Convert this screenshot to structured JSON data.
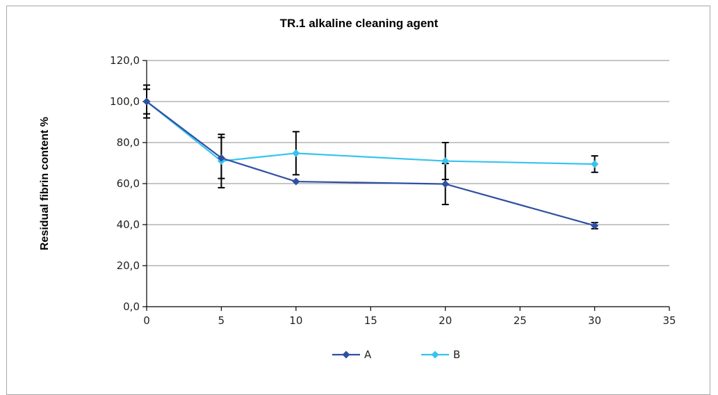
{
  "chart_data": {
    "type": "line",
    "title": "TR.1 alkaline cleaning agent",
    "xlabel": "",
    "ylabel": "Residual fibrin content %",
    "xlim": [
      0,
      35
    ],
    "ylim": [
      0,
      120
    ],
    "x_ticks": [
      "0",
      "5",
      "10",
      "15",
      "20",
      "25",
      "30",
      "35"
    ],
    "y_ticks": [
      "0,0",
      "20,0",
      "40,0",
      "60,0",
      "80,0",
      "100,0",
      "120,0"
    ],
    "grid": "horizontal",
    "legend": "bottom-center",
    "series": [
      {
        "name": "A",
        "color": "#2f4fa2",
        "marker": "diamond",
        "x": [
          0,
          5,
          10,
          20,
          30
        ],
        "y": [
          100.0,
          72.5,
          61.0,
          59.8,
          39.5
        ],
        "error": [
          8.0,
          10.0,
          null,
          10.0,
          1.5
        ]
      },
      {
        "name": "B",
        "color": "#36c3ef",
        "marker": "diamond",
        "x": [
          0,
          5,
          10,
          20,
          30
        ],
        "y": [
          100.0,
          71.0,
          74.8,
          71.0,
          69.5
        ],
        "error": [
          6.0,
          13.0,
          10.5,
          9.0,
          4.0
        ]
      }
    ]
  }
}
